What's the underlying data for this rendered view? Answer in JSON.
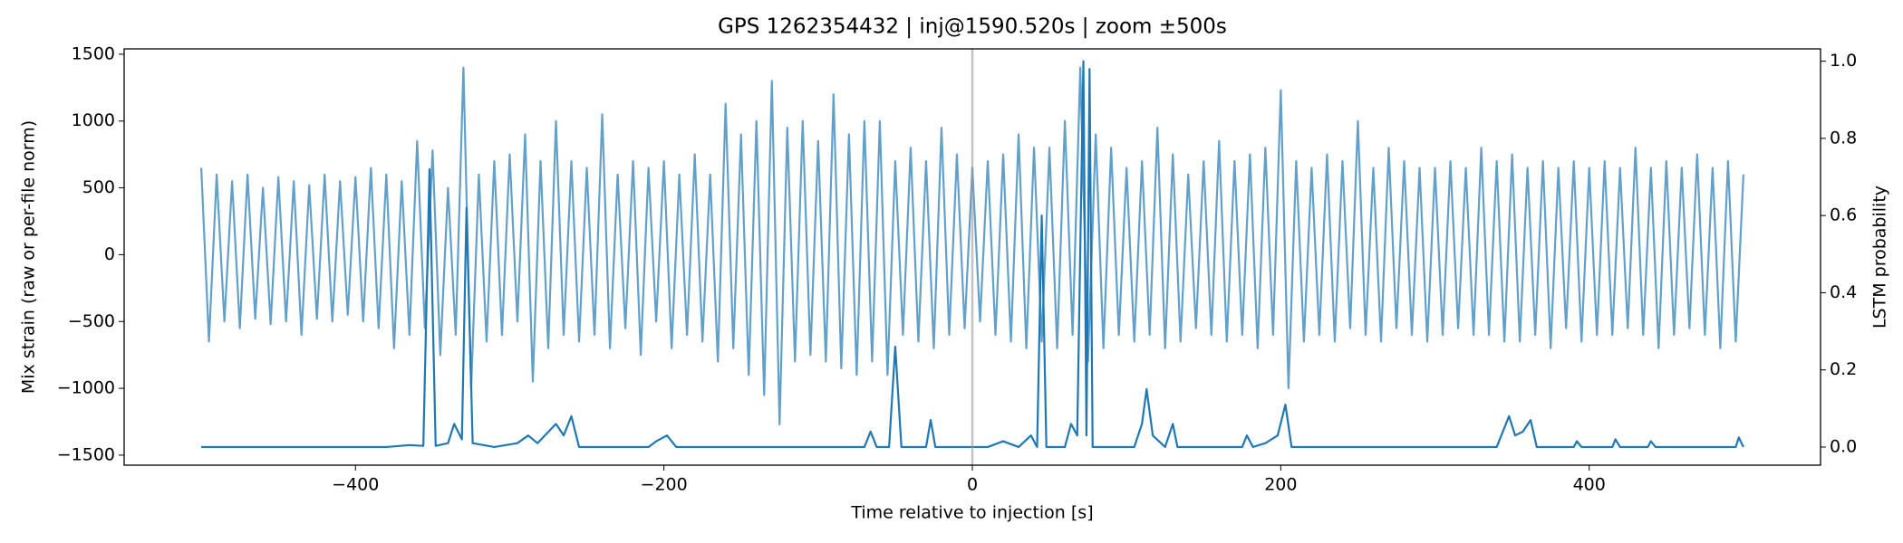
{
  "chart_data": {
    "type": "line",
    "title": "GPS 1262354432 | inj@1590.520s | zoom ±500s",
    "x_label": "Time relative to injection [s]",
    "y_label": "Mix strain (raw or per-file norm)",
    "y2_label": "LSTM probability",
    "xlim": [
      -550,
      550
    ],
    "ylim": [
      -1575,
      1540
    ],
    "y2lim": [
      -0.047,
      1.032
    ],
    "xticks": [
      {
        "value": -400,
        "label": "−400"
      },
      {
        "value": -200,
        "label": "−200"
      },
      0,
      200,
      400
    ],
    "yticks": [
      {
        "value": -1500,
        "label": "−1500"
      },
      {
        "value": -1000,
        "label": "−1000"
      },
      {
        "value": -500,
        "label": "−500"
      },
      0,
      500,
      1000,
      1500
    ],
    "y2ticks": [
      {
        "value": 0,
        "label": "0.0"
      },
      0.2,
      0.4,
      0.6,
      0.8,
      {
        "value": 1,
        "label": "1.0"
      }
    ],
    "vline": 0,
    "vline_color": "#999999",
    "series": [
      {
        "color": "#1f77b4",
        "opacity": 0.7,
        "x": [
          -500,
          -495,
          -490,
          -485,
          -480,
          -475,
          -470,
          -465,
          -460,
          -455,
          -450,
          -445,
          -440,
          -435,
          -430,
          -425,
          -420,
          -415,
          -410,
          -405,
          -400,
          -395,
          -390,
          -385,
          -380,
          -375,
          -370,
          -365,
          -360,
          -355,
          -350,
          -345,
          -340,
          -335,
          -330,
          -325,
          -320,
          -315,
          -310,
          -305,
          -300,
          -295,
          -290,
          -285,
          -280,
          -275,
          -270,
          -265,
          -260,
          -255,
          -250,
          -245,
          -240,
          -235,
          -230,
          -225,
          -220,
          -215,
          -210,
          -205,
          -200,
          -195,
          -190,
          -185,
          -180,
          -175,
          -170,
          -165,
          -160,
          -155,
          -150,
          -145,
          -140,
          -135,
          -130,
          -125,
          -120,
          -115,
          -110,
          -105,
          -100,
          -95,
          -90,
          -85,
          -80,
          -75,
          -70,
          -65,
          -60,
          -55,
          -50,
          -45,
          -40,
          -35,
          -30,
          -25,
          -20,
          -15,
          -10,
          -5,
          0,
          5,
          10,
          15,
          20,
          25,
          30,
          35,
          40,
          45,
          50,
          55,
          60,
          65,
          70,
          75,
          80,
          85,
          90,
          95,
          100,
          105,
          110,
          115,
          120,
          125,
          130,
          135,
          140,
          145,
          150,
          155,
          160,
          165,
          170,
          175,
          180,
          185,
          190,
          195,
          200,
          205,
          210,
          215,
          220,
          225,
          230,
          235,
          240,
          245,
          250,
          255,
          260,
          265,
          270,
          275,
          280,
          285,
          290,
          295,
          300,
          305,
          310,
          315,
          320,
          325,
          330,
          335,
          340,
          345,
          350,
          355,
          360,
          365,
          370,
          375,
          380,
          385,
          390,
          395,
          400,
          405,
          410,
          415,
          420,
          425,
          430,
          435,
          440,
          445,
          450,
          455,
          460,
          465,
          470,
          475,
          480,
          485,
          490,
          495,
          500
        ],
        "values": [
          650,
          -650,
          600,
          -500,
          550,
          -550,
          600,
          -480,
          500,
          -520,
          580,
          -500,
          550,
          -600,
          520,
          -480,
          600,
          -500,
          550,
          -450,
          580,
          -500,
          650,
          -550,
          600,
          -700,
          550,
          -600,
          850,
          -550,
          780,
          -750,
          500,
          -600,
          1400,
          -1000,
          600,
          -650,
          700,
          -600,
          750,
          -500,
          900,
          -950,
          700,
          -700,
          1000,
          -600,
          700,
          -650,
          650,
          -600,
          1050,
          -700,
          600,
          -550,
          700,
          -750,
          650,
          -500,
          700,
          -700,
          600,
          -600,
          750,
          -650,
          600,
          -800,
          1130,
          -700,
          900,
          -900,
          1000,
          -1050,
          1300,
          -1270,
          950,
          -800,
          1000,
          -750,
          850,
          -800,
          1200,
          -850,
          900,
          -900,
          1000,
          -800,
          1000,
          -900,
          700,
          -600,
          800,
          -650,
          700,
          -700,
          950,
          -600,
          750,
          -550,
          650,
          -500,
          700,
          -600,
          750,
          -650,
          900,
          -700,
          800,
          -650,
          800,
          -700,
          1000,
          -600,
          1400,
          -800,
          900,
          -700,
          800,
          -600,
          650,
          -650,
          700,
          -600,
          950,
          -700,
          750,
          -650,
          600,
          -550,
          700,
          -600,
          850,
          -650,
          700,
          -600,
          750,
          -700,
          800,
          -600,
          1230,
          -1000,
          700,
          -650,
          650,
          -600,
          750,
          -650,
          700,
          -550,
          1000,
          -600,
          650,
          -650,
          800,
          -550,
          700,
          -600,
          650,
          -650,
          650,
          -600,
          700,
          -550,
          650,
          -600,
          800,
          -600,
          700,
          -650,
          750,
          -650,
          650,
          -600,
          700,
          -700,
          650,
          -550,
          700,
          -650,
          650,
          -600,
          700,
          -600,
          650,
          -550,
          800,
          -600,
          650,
          -700,
          700,
          -600,
          650,
          -550,
          750,
          -600,
          650,
          -700,
          700,
          -650,
          600
        ]
      },
      {
        "color": "#1f77b4",
        "opacity": 1,
        "axis": "y2",
        "x": [
          -500,
          -380,
          -365,
          -356,
          -352,
          -348,
          -340,
          -336,
          -331,
          -328,
          -324,
          -310,
          -295,
          -288,
          -282,
          -270,
          -265,
          -260,
          -255,
          -210,
          -205,
          -198,
          -192,
          -70,
          -66,
          -62,
          -54,
          -50,
          -46,
          -30,
          -27,
          -24,
          10,
          20,
          30,
          38,
          42,
          45,
          48,
          60,
          64,
          68,
          72,
          74,
          76,
          78,
          105,
          110,
          113,
          117,
          125,
          130,
          133,
          175,
          178,
          182,
          190,
          198,
          203,
          207,
          340,
          348,
          352,
          357,
          362,
          366,
          390,
          392,
          395,
          415,
          417,
          420,
          438,
          440,
          443,
          495,
          497,
          500
        ],
        "values": [
          0,
          0,
          0.005,
          0.003,
          0.72,
          0.003,
          0.01,
          0.06,
          0.02,
          0.62,
          0.01,
          0,
          0.01,
          0.03,
          0.01,
          0.06,
          0.03,
          0.08,
          0,
          0,
          0.015,
          0.03,
          0,
          0,
          0.04,
          0,
          0,
          0.26,
          0,
          0,
          0.07,
          0,
          0,
          0.015,
          0,
          0.03,
          0,
          0.6,
          0,
          0,
          0.06,
          0.03,
          1,
          0.03,
          0.98,
          0,
          0,
          0.06,
          0.15,
          0.03,
          0,
          0.06,
          0,
          0,
          0.03,
          0,
          0.01,
          0.03,
          0.11,
          0,
          0,
          0.08,
          0.03,
          0.04,
          0.07,
          0,
          0,
          0.015,
          0,
          0,
          0.02,
          0,
          0,
          0.015,
          0,
          0,
          0.025,
          0
        ]
      }
    ]
  }
}
